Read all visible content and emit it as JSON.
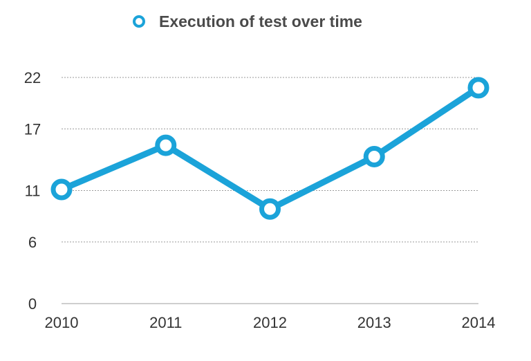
{
  "chart_data": {
    "type": "line",
    "title": "",
    "xlabel": "",
    "ylabel": "",
    "categories": [
      "2010",
      "2011",
      "2012",
      "2013",
      "2014"
    ],
    "series": [
      {
        "name": "Execution of test over time",
        "values": [
          11.1,
          15.4,
          9.2,
          14.3,
          21.0
        ]
      }
    ],
    "yticks": [
      0,
      6,
      11,
      17,
      22
    ],
    "ytick_labels": [
      "0",
      "6",
      "11",
      "17",
      "22"
    ],
    "ylim": [
      0,
      22
    ],
    "grid": true,
    "legend_position": "top-center",
    "colors": {
      "series": "#1ba3d9",
      "marker_fill": "#ffffff",
      "grid": "#9a9a9a",
      "axis": "#bdbdbd",
      "text": "#333333",
      "legend_text": "#4a4a4a"
    }
  }
}
